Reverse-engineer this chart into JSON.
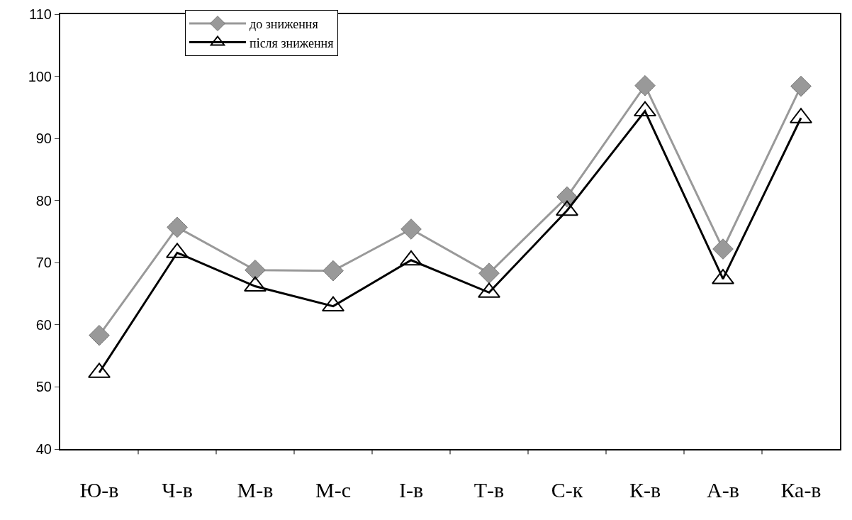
{
  "chart_data": {
    "type": "line",
    "categories": [
      "Ю-в",
      "Ч-в",
      "М-в",
      "М-с",
      "І-в",
      "Т-в",
      "С-к",
      "К-в",
      "А-в",
      "Ка-в"
    ],
    "series": [
      {
        "name": "до зниження",
        "color": "#999999",
        "marker": "diamond",
        "values": [
          58.3,
          75.7,
          68.8,
          68.7,
          75.4,
          68.3,
          80.6,
          98.5,
          72.2,
          98.4
        ]
      },
      {
        "name": "після зниження",
        "color": "#000000",
        "marker": "triangle",
        "values": [
          52.3,
          71.6,
          66.2,
          63.0,
          70.4,
          65.2,
          78.4,
          94.4,
          67.4,
          93.3
        ]
      }
    ],
    "ylim": [
      40,
      110
    ],
    "yticks": [
      40,
      50,
      60,
      70,
      80,
      90,
      100,
      110
    ],
    "grid": false,
    "legend": "top",
    "line_style": "solid"
  }
}
